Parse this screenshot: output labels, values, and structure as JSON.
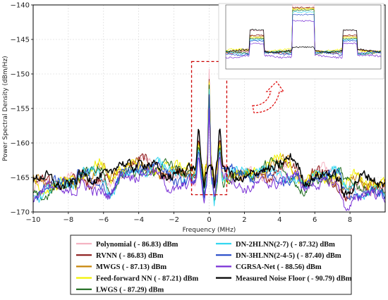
{
  "chart_data": {
    "type": "line",
    "xlabel": "Frequency (MHz)",
    "ylabel": "Power Spectral Density (dBm/Hz)",
    "xlim": [
      -10,
      10
    ],
    "ylim": [
      -170,
      -140
    ],
    "x_ticks": [
      -10,
      -8,
      -6,
      -4,
      -2,
      0,
      2,
      4,
      6,
      8
    ],
    "x_tick_labels": [
      "−10",
      "−8",
      "−6",
      "−4",
      "−2",
      "0",
      "2",
      "4",
      "6",
      "8"
    ],
    "y_ticks": [
      -170,
      -165,
      -160,
      -155,
      -150,
      -145,
      -140
    ],
    "y_tick_labels": [
      "−170",
      "−165",
      "−160",
      "−155",
      "−150",
      "−145",
      "−140"
    ],
    "grid": true,
    "legend_position": "bottom",
    "highlight_box": {
      "x": [
        -1.0,
        1.0
      ],
      "y": [
        -167.5,
        -148.2
      ]
    },
    "series": [
      {
        "name": "Polynomial ( - 86.83) dBm",
        "color": "#f4b3c2",
        "peak": -149.3,
        "side": -158.0,
        "floor": -164.8
      },
      {
        "name": "RVNN ( - 86.83) dBm",
        "color": "#8b1a1a",
        "peak": -150.8,
        "side": -159.5,
        "floor": -164.6
      },
      {
        "name": "MWGS ( - 87.13) dBm",
        "color": "#c8860a",
        "peak": -151.0,
        "side": -159.8,
        "floor": -164.4
      },
      {
        "name": "Feed-forward NN ( - 87.21) dBm",
        "color": "#f2f200",
        "peak": -151.3,
        "side": -160.2,
        "floor": -164.2
      },
      {
        "name": "LWGS ( - 87.29) dBm",
        "color": "#1e6b1e",
        "peak": -151.6,
        "side": -160.5,
        "floor": -164.9
      },
      {
        "name": "DN-2HLNN(2-7) ( - 87.32) dBm",
        "color": "#33d6f0",
        "peak": -152.2,
        "side": -160.9,
        "floor": -165.0
      },
      {
        "name": "DN-3HLNN(2-4-5) ( - 87.40) dBm",
        "color": "#2449c8",
        "peak": -153.0,
        "side": -161.2,
        "floor": -165.2
      },
      {
        "name": "CGRSA-Net ( - 88.56) dBm",
        "color": "#7a30d6",
        "peak": -155.0,
        "side": -162.0,
        "floor": -166.0
      },
      {
        "name": "Measured Noise Floor ( - 90.79) dBm",
        "color": "#000000",
        "peak": -163.2,
        "side": -157.8,
        "floor": -164.3
      }
    ]
  }
}
